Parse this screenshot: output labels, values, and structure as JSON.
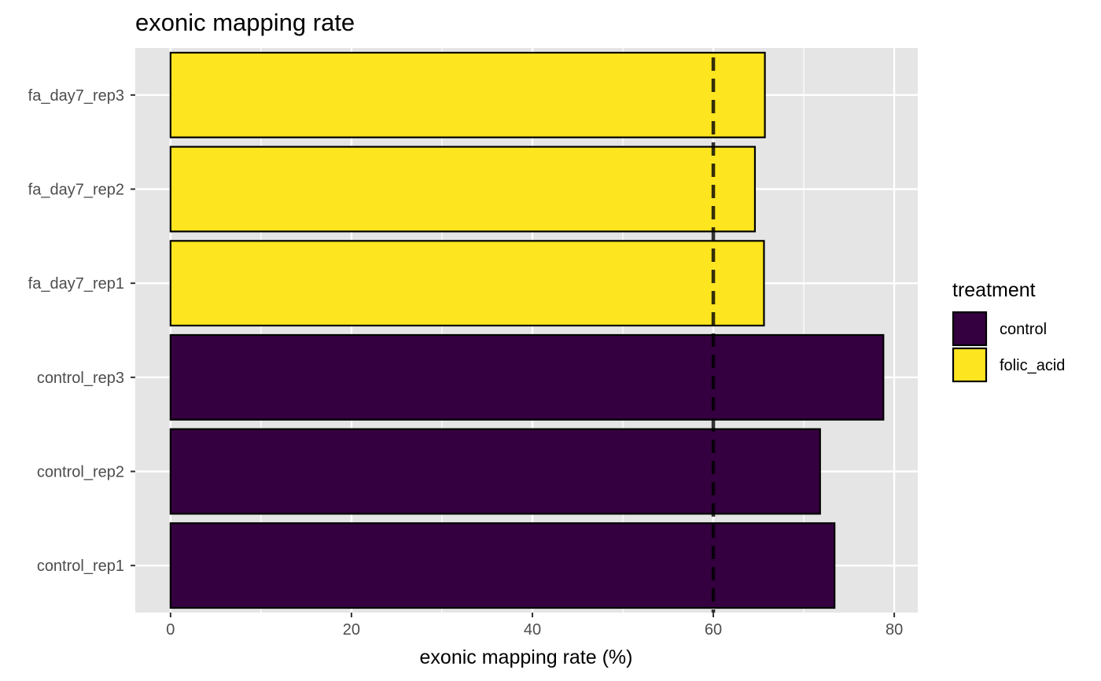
{
  "chart_data": {
    "type": "bar",
    "orientation": "horizontal",
    "title": "exonic mapping rate",
    "xlabel": "exonic mapping rate (%)",
    "ylabel": "",
    "xlim": [
      -3.9,
      82.6
    ],
    "x_ticks": [
      0,
      20,
      40,
      60,
      80
    ],
    "categories": [
      "control_rep1",
      "control_rep2",
      "control_rep3",
      "fa_day7_rep1",
      "fa_day7_rep2",
      "fa_day7_rep3"
    ],
    "values": [
      73.4,
      71.8,
      78.8,
      65.6,
      64.6,
      65.7
    ],
    "treatment": [
      "control",
      "control",
      "control",
      "folic_acid",
      "folic_acid",
      "folic_acid"
    ],
    "reference_line": {
      "x": 60,
      "style": "dashed"
    },
    "grid": true,
    "legend": {
      "title": "treatment",
      "placement": "right",
      "entries": [
        {
          "label": "control",
          "color": "#35003f"
        },
        {
          "label": "folic_acid",
          "color": "#fde520"
        }
      ]
    },
    "colors": {
      "panel": "#e5e5e5",
      "grid": "#ffffff",
      "outline": "#000000"
    }
  }
}
